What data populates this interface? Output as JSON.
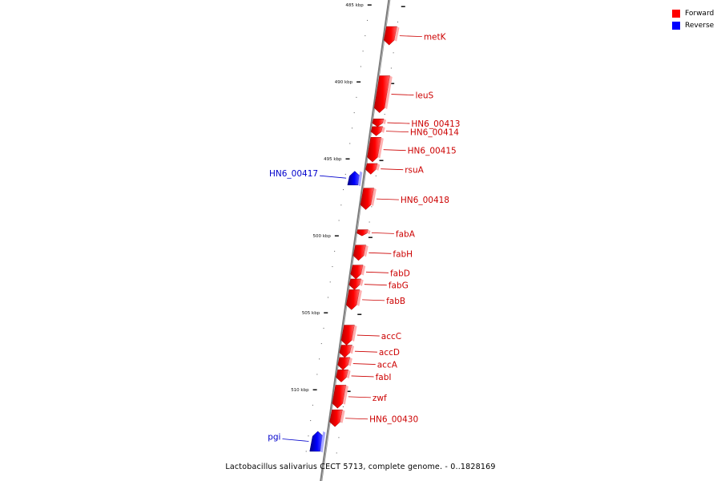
{
  "caption": "Lactobacillus salivarius CECT 5713, complete genome. - 0..1828169",
  "legend": [
    {
      "label": "Forward",
      "color": "#ff0000"
    },
    {
      "label": "Reverse",
      "color": "#0000ff"
    }
  ],
  "scale": [
    {
      "kbp": 485,
      "label": "485 kbp"
    },
    {
      "kbp": 490,
      "label": "490 kbp"
    },
    {
      "kbp": 495,
      "label": "495 kbp"
    },
    {
      "kbp": 500,
      "label": "500 kbp"
    },
    {
      "kbp": 505,
      "label": "505 kbp"
    },
    {
      "kbp": 510,
      "label": "510 kbp"
    }
  ],
  "genes": [
    {
      "name": "metK",
      "strand": "forward",
      "start": 486.4,
      "end": 487.6
    },
    {
      "name": "leuS",
      "strand": "forward",
      "start": 489.6,
      "end": 492.0
    },
    {
      "name": "HN6_00413",
      "strand": "forward",
      "start": 492.4,
      "end": 492.9
    },
    {
      "name": "HN6_00414",
      "strand": "forward",
      "start": 492.9,
      "end": 493.5
    },
    {
      "name": "HN6_00415",
      "strand": "forward",
      "start": 493.6,
      "end": 495.2
    },
    {
      "name": "rsuA",
      "strand": "forward",
      "start": 495.3,
      "end": 496.0
    },
    {
      "name": "HN6_00417",
      "strand": "reverse",
      "start": 495.8,
      "end": 496.7
    },
    {
      "name": "HN6_00418",
      "strand": "forward",
      "start": 496.9,
      "end": 498.3
    },
    {
      "name": "fabA",
      "strand": "forward",
      "start": 499.6,
      "end": 500.0
    },
    {
      "name": "fabH",
      "strand": "forward",
      "start": 500.6,
      "end": 501.6
    },
    {
      "name": "fabD",
      "strand": "forward",
      "start": 501.9,
      "end": 502.8
    },
    {
      "name": "fabG",
      "strand": "forward",
      "start": 502.8,
      "end": 503.5
    },
    {
      "name": "fabB",
      "strand": "forward",
      "start": 503.5,
      "end": 504.8
    },
    {
      "name": "accC",
      "strand": "forward",
      "start": 505.8,
      "end": 507.1
    },
    {
      "name": "accD",
      "strand": "forward",
      "start": 507.1,
      "end": 507.9
    },
    {
      "name": "accA",
      "strand": "forward",
      "start": 507.9,
      "end": 508.7
    },
    {
      "name": "fabI",
      "strand": "forward",
      "start": 508.7,
      "end": 509.5
    },
    {
      "name": "zwf",
      "strand": "forward",
      "start": 509.7,
      "end": 511.2
    },
    {
      "name": "HN6_00430",
      "strand": "forward",
      "start": 511.3,
      "end": 512.4
    },
    {
      "name": "pgi",
      "strand": "reverse",
      "start": 512.7,
      "end": 514.0
    }
  ]
}
